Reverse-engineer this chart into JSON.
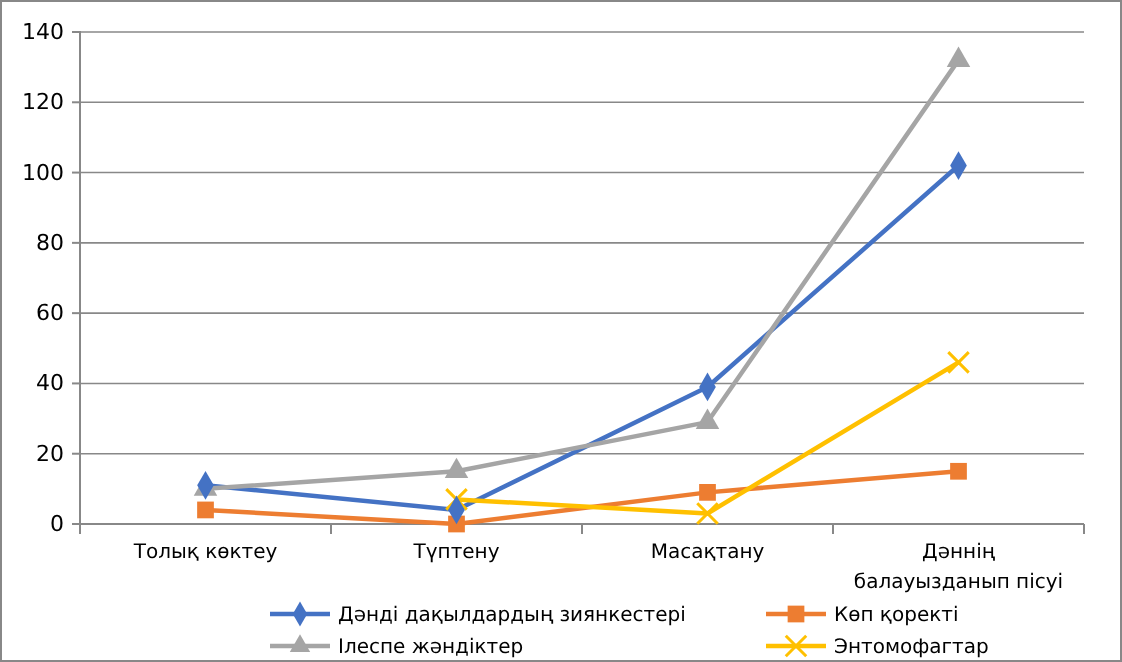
{
  "chart_data": {
    "type": "line",
    "categories": [
      "Толық көктеу",
      "Түптену",
      "Масақтану",
      "Дәннің балауызданып пісуі"
    ],
    "series": [
      {
        "name": "Дәнді дақылдардың зиянкестері",
        "color": "#4472c4",
        "marker": "diamond",
        "values": [
          11,
          4,
          39,
          102
        ]
      },
      {
        "name": "Көп қоректі",
        "color": "#ed7d31",
        "marker": "square",
        "values": [
          4,
          0,
          9,
          15
        ]
      },
      {
        "name": "Ілеспе жәндіктер",
        "color": "#a5a5a5",
        "marker": "triangle",
        "values": [
          10,
          15,
          29,
          132
        ]
      },
      {
        "name": "Энтомофагтар",
        "color": "#ffc000",
        "marker": "cross",
        "values": [
          null,
          7,
          3,
          46
        ]
      }
    ],
    "ylim": [
      0,
      140
    ],
    "yticks": [
      0,
      20,
      40,
      60,
      80,
      100,
      120,
      140
    ],
    "grid": "y",
    "legend": "bottom"
  }
}
